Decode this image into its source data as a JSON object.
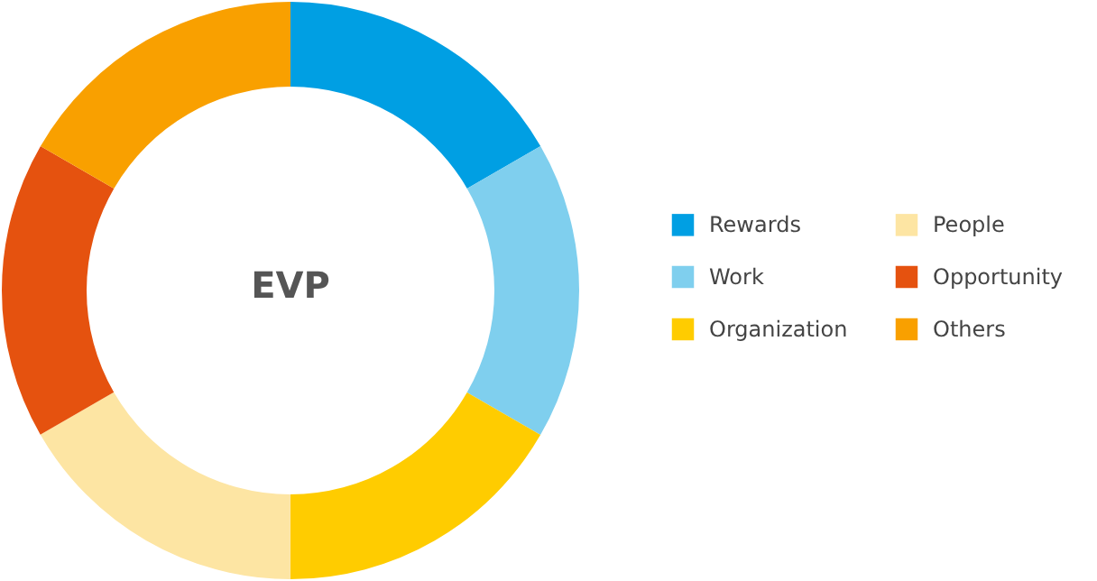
{
  "chart_data": {
    "type": "donut",
    "title": "EVP",
    "categories": [
      "Rewards",
      "Work",
      "Organization",
      "People",
      "Opportunity",
      "Others"
    ],
    "values": [
      16.67,
      16.67,
      16.67,
      16.67,
      16.66,
      16.66
    ],
    "colors": [
      "#009fe3",
      "#7fcfee",
      "#ffcc00",
      "#fde5a3",
      "#e5520f",
      "#f9a000"
    ],
    "legend": "right"
  }
}
